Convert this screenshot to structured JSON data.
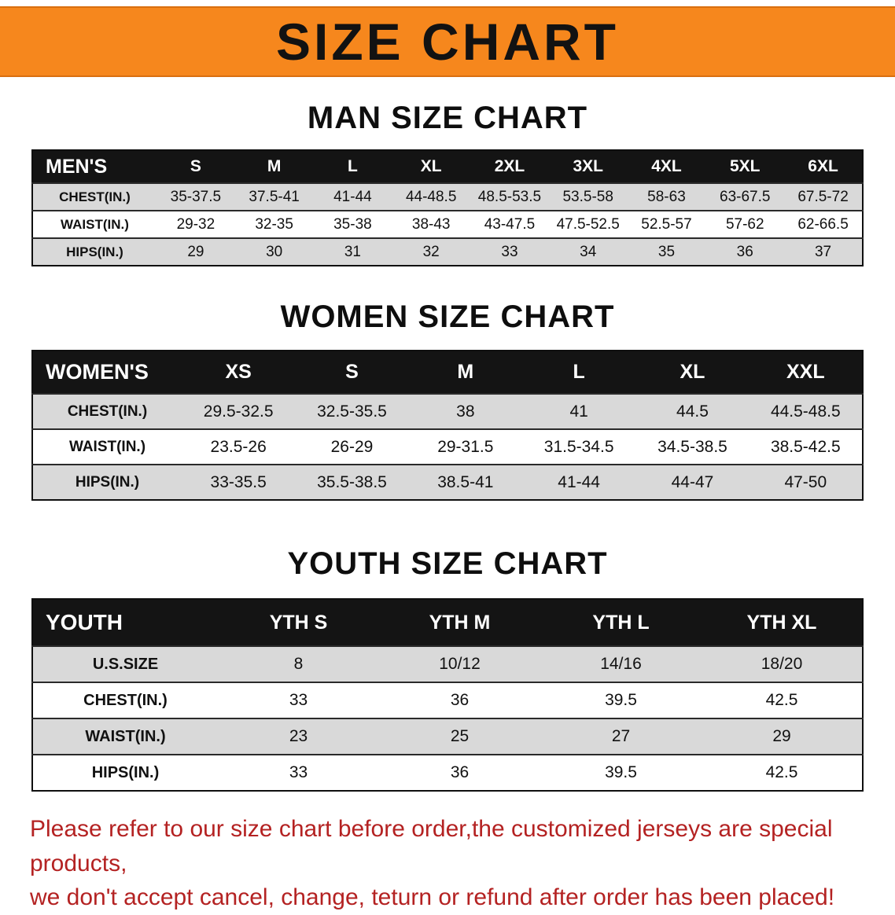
{
  "banner": {
    "title": "SIZE CHART",
    "bg_color": "#f6871d"
  },
  "chart_data": [
    {
      "type": "table",
      "title": "MAN SIZE CHART",
      "header": [
        "MEN'S",
        "S",
        "M",
        "L",
        "XL",
        "2XL",
        "3XL",
        "4XL",
        "5XL",
        "6XL"
      ],
      "rows": [
        [
          "CHEST(IN.)",
          "35-37.5",
          "37.5-41",
          "41-44",
          "44-48.5",
          "48.5-53.5",
          "53.5-58",
          "58-63",
          "63-67.5",
          "67.5-72"
        ],
        [
          "WAIST(IN.)",
          "29-32",
          "32-35",
          "35-38",
          "38-43",
          "43-47.5",
          "47.5-52.5",
          "52.5-57",
          "57-62",
          "62-66.5"
        ],
        [
          "HIPS(IN.)",
          "29",
          "30",
          "31",
          "32",
          "33",
          "34",
          "35",
          "36",
          "37"
        ]
      ]
    },
    {
      "type": "table",
      "title": "WOMEN SIZE CHART",
      "header": [
        "WOMEN'S",
        "XS",
        "S",
        "M",
        "L",
        "XL",
        "XXL"
      ],
      "rows": [
        [
          "CHEST(IN.)",
          "29.5-32.5",
          "32.5-35.5",
          "38",
          "41",
          "44.5",
          "44.5-48.5"
        ],
        [
          "WAIST(IN.)",
          "23.5-26",
          "26-29",
          "29-31.5",
          "31.5-34.5",
          "34.5-38.5",
          "38.5-42.5"
        ],
        [
          "HIPS(IN.)",
          "33-35.5",
          "35.5-38.5",
          "38.5-41",
          "41-44",
          "44-47",
          "47-50"
        ]
      ]
    },
    {
      "type": "table",
      "title": "YOUTH SIZE CHART",
      "header": [
        "YOUTH",
        "YTH S",
        "YTH M",
        "YTH L",
        "YTH XL"
      ],
      "rows": [
        [
          "U.S.SIZE",
          "8",
          "10/12",
          "14/16",
          "18/20"
        ],
        [
          "CHEST(IN.)",
          "33",
          "36",
          "39.5",
          "42.5"
        ],
        [
          "WAIST(IN.)",
          "23",
          "25",
          "27",
          "29"
        ],
        [
          "HIPS(IN.)",
          "33",
          "36",
          "39.5",
          "42.5"
        ]
      ]
    }
  ],
  "footer": {
    "lines": [
      "Please refer to our size chart before order,the customized jerseys are special products,",
      "we don't accept cancel, change, teturn or refund after order has been placed!"
    ],
    "color": "#b42222"
  }
}
